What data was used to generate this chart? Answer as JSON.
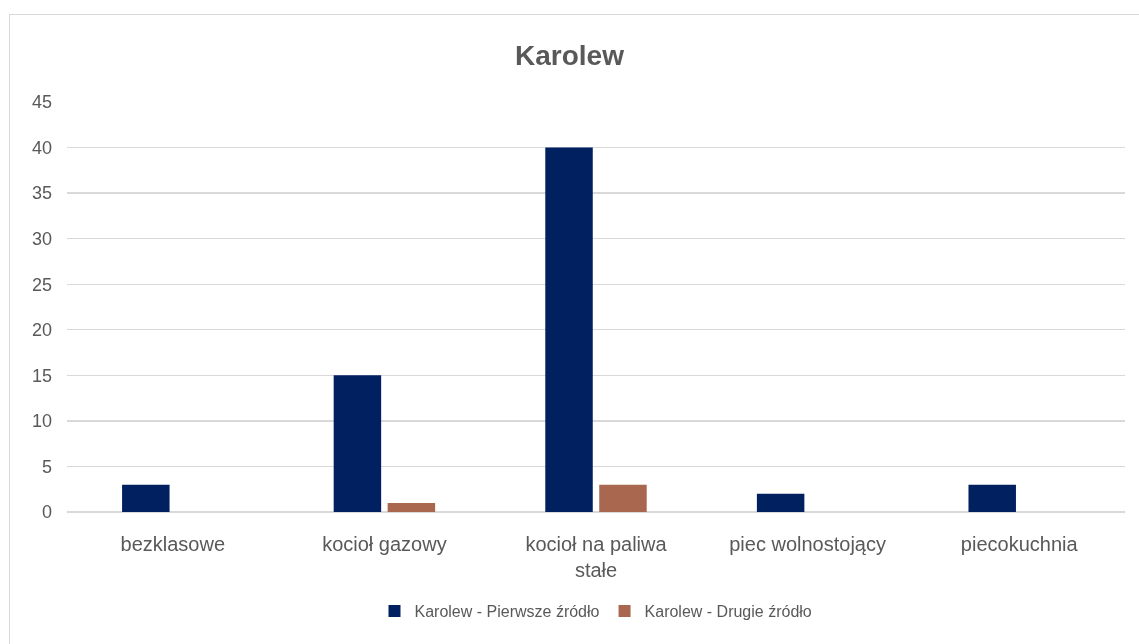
{
  "chart_data": {
    "type": "bar",
    "title": "Karolew",
    "categories": [
      "bezklasowe",
      "kocioł gazowy",
      "kocioł na paliwa stałe",
      "piec wolnostojący",
      "piecokuchnia"
    ],
    "series": [
      {
        "name": "Karolew - Pierwsze źródło",
        "color": "#002060",
        "values": [
          3,
          15,
          40,
          2,
          3
        ]
      },
      {
        "name": "Karolew - Drugie źródło",
        "color": "#a9674f",
        "values": [
          null,
          1,
          3,
          null,
          null
        ]
      }
    ],
    "ylim": [
      0,
      45
    ],
    "yticks": [
      0,
      5,
      10,
      15,
      20,
      25,
      30,
      35,
      40,
      45
    ],
    "grid": "y",
    "legend": "bottom"
  }
}
